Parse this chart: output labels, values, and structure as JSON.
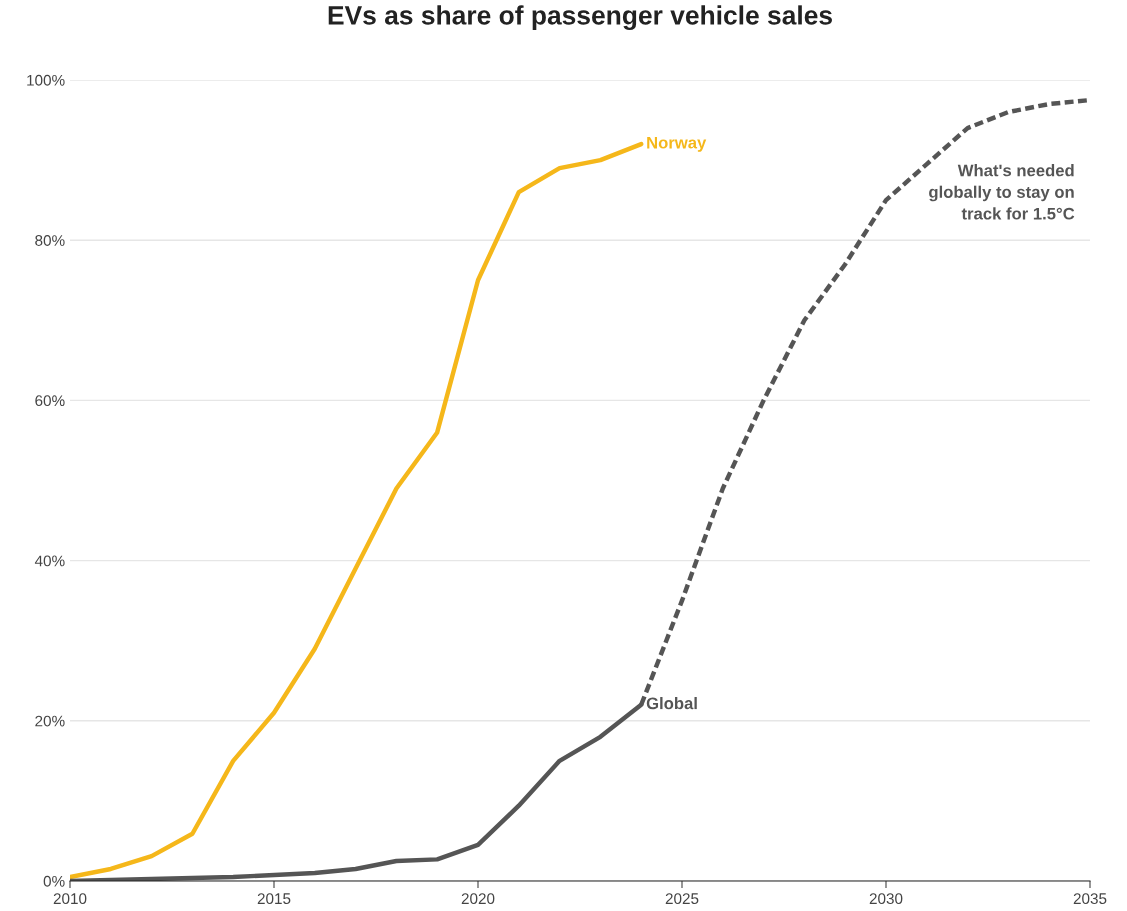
{
  "chart_data": {
    "type": "line",
    "title": "EVs as share of passenger vehicle sales",
    "series": [
      {
        "name": "Norway",
        "color": "#f5b71a",
        "line_style": "solid",
        "x": [
          2010,
          2011,
          2012,
          2013,
          2014,
          2015,
          2016,
          2017,
          2018,
          2019,
          2020,
          2021,
          2022,
          2023,
          2024
        ],
        "values": [
          0.5,
          1.5,
          3.1,
          5.9,
          15,
          21,
          29,
          39,
          49,
          56,
          75,
          86,
          89,
          90,
          92
        ]
      },
      {
        "name": "Global",
        "color": "#555555",
        "line_style": "solid",
        "x": [
          2010,
          2014,
          2016,
          2017,
          2018,
          2019,
          2020,
          2021,
          2022,
          2023,
          2024
        ],
        "values": [
          0,
          0.5,
          1,
          1.5,
          2.5,
          2.7,
          4.5,
          9.4,
          15,
          18,
          22
        ]
      },
      {
        "color": "#555555",
        "line_style": "dashed",
        "x": [
          2024,
          2025,
          2026,
          2027,
          2028,
          2029,
          2030,
          2031,
          2032,
          2033,
          2034,
          2035
        ],
        "values": [
          22,
          35,
          49,
          60,
          70,
          77,
          85,
          89.5,
          94,
          96,
          97,
          97.5
        ]
      }
    ],
    "annotations": [
      "What's needed\nglobally to stay on\ntrack for 1.5°C"
    ],
    "xlim": [
      2010,
      2035
    ],
    "xticks": [
      2010,
      2015,
      2020,
      2025,
      2030,
      2035
    ],
    "ylim": [
      0,
      100
    ],
    "yticks": [
      {
        "value": 0,
        "label": "0%"
      },
      {
        "value": 20,
        "label": "20%"
      },
      {
        "value": 40,
        "label": "40%"
      },
      {
        "value": 60,
        "label": "60%"
      },
      {
        "value": 80,
        "label": "80%"
      },
      {
        "value": 100,
        "label": "100%"
      }
    ],
    "grid": "y",
    "legend": false,
    "marker": "none"
  }
}
